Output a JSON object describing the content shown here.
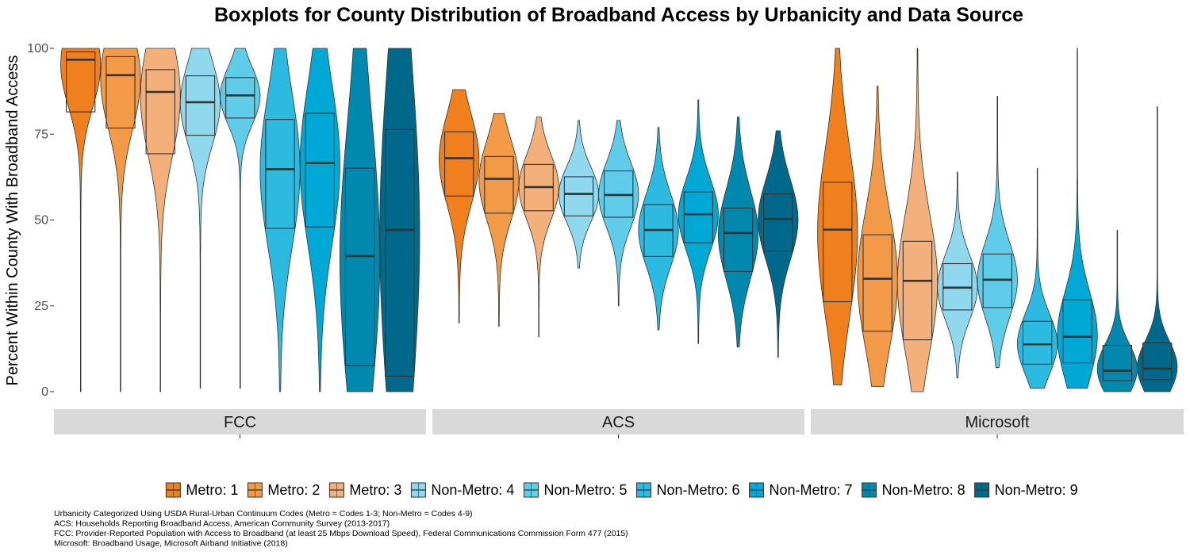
{
  "chart_data": {
    "type": "violin+box",
    "title": "Boxplots for County Distribution of Broadband Access by Urbanicity and Data Source",
    "ylabel": "Percent Within County With Broadband Access",
    "xlabel": "",
    "ylim": [
      0,
      100
    ],
    "yticks": [
      0,
      25,
      50,
      75,
      100
    ],
    "grid": false,
    "legend_position": "bottom",
    "panels": [
      "FCC",
      "ACS",
      "Microsoft"
    ],
    "series": [
      {
        "name": "Metro: 1",
        "color": "#F07F1E"
      },
      {
        "name": "Metro: 2",
        "color": "#F29A47"
      },
      {
        "name": "Metro: 3",
        "color": "#F4B07A"
      },
      {
        "name": "Non-Metro: 4",
        "color": "#8FD8EE"
      },
      {
        "name": "Non-Metro: 5",
        "color": "#5FCCEA"
      },
      {
        "name": "Non-Metro: 6",
        "color": "#2DBAE0"
      },
      {
        "name": "Non-Metro: 7",
        "color": "#00A8D6"
      },
      {
        "name": "Non-Metro: 8",
        "color": "#0088AE"
      },
      {
        "name": "Non-Metro: 9",
        "color": "#00688A"
      }
    ],
    "data": {
      "FCC": [
        {
          "min": 0,
          "q1": 81.5,
          "median": 96.7,
          "q3": 99,
          "max": 100
        },
        {
          "min": 0,
          "q1": 76.8,
          "median": 92.2,
          "q3": 97.6,
          "max": 100
        },
        {
          "min": 0,
          "q1": 69.3,
          "median": 87.3,
          "q3": 93.8,
          "max": 100
        },
        {
          "min": 1,
          "q1": 74.7,
          "median": 84.3,
          "q3": 92,
          "max": 100
        },
        {
          "min": 1,
          "q1": 79.7,
          "median": 86.3,
          "q3": 91.5,
          "max": 100
        },
        {
          "min": 0,
          "q1": 47.6,
          "median": 64.8,
          "q3": 79.3,
          "max": 100
        },
        {
          "min": 0,
          "q1": 48,
          "median": 66.6,
          "q3": 81.1,
          "max": 100
        },
        {
          "min": 0,
          "q1": 7.6,
          "median": 39.5,
          "q3": 65.1,
          "max": 100
        },
        {
          "min": 0,
          "q1": 4.5,
          "median": 47.1,
          "q3": 76.4,
          "max": 100
        }
      ],
      "ACS": [
        {
          "min": 20,
          "q1": 57,
          "median": 68,
          "q3": 75.7,
          "max": 88
        },
        {
          "min": 19,
          "q1": 52,
          "median": 62,
          "q3": 68.5,
          "max": 81
        },
        {
          "min": 16,
          "q1": 52.7,
          "median": 59.6,
          "q3": 66.2,
          "max": 80
        },
        {
          "min": 36,
          "q1": 51.2,
          "median": 57.6,
          "q3": 62.6,
          "max": 79
        },
        {
          "min": 25,
          "q1": 50.8,
          "median": 57.3,
          "q3": 64.3,
          "max": 79
        },
        {
          "min": 18,
          "q1": 39.4,
          "median": 47.1,
          "q3": 54.5,
          "max": 77
        },
        {
          "min": 14,
          "q1": 43.4,
          "median": 51.7,
          "q3": 58.2,
          "max": 85
        },
        {
          "min": 13,
          "q1": 35,
          "median": 46.2,
          "q3": 53.5,
          "max": 80
        },
        {
          "min": 10,
          "q1": 40.8,
          "median": 50.3,
          "q3": 57.6,
          "max": 76
        }
      ],
      "Microsoft": [
        {
          "min": 2,
          "q1": 26.2,
          "median": 47.2,
          "q3": 61,
          "max": 100
        },
        {
          "min": 1.5,
          "q1": 17.6,
          "median": 32.9,
          "q3": 45.7,
          "max": 89
        },
        {
          "min": 0,
          "q1": 15.1,
          "median": 32.3,
          "q3": 43.8,
          "max": 100
        },
        {
          "min": 4,
          "q1": 23.8,
          "median": 30.3,
          "q3": 37.3,
          "max": 64
        },
        {
          "min": 7,
          "q1": 24.5,
          "median": 32.6,
          "q3": 40.1,
          "max": 86
        },
        {
          "min": 1,
          "q1": 8,
          "median": 13.8,
          "q3": 20.5,
          "max": 65
        },
        {
          "min": 1,
          "q1": 8.4,
          "median": 16,
          "q3": 26.8,
          "max": 100
        },
        {
          "min": 0,
          "q1": 3.2,
          "median": 6.1,
          "q3": 13.5,
          "max": 47
        },
        {
          "min": 0,
          "q1": 3.5,
          "median": 6.7,
          "q3": 14.2,
          "max": 83
        }
      ]
    },
    "captions": [
      "Urbanicity Categorized Using USDA Rural-Urban Continuum Codes (Metro = Codes 1-3; Non-Metro = Codes 4-9)",
      "ACS: Households Reporting Broadband Access, American Community Survey (2013-2017)",
      "FCC: Provider-Reported Population with Access to Broadband (at least 25 Mbps Download Speed), Federal Communications Commission Form 477 (2015)",
      "Microsoft: Broadband Usage,  Microsoft Airband Initiative (2018)"
    ]
  }
}
